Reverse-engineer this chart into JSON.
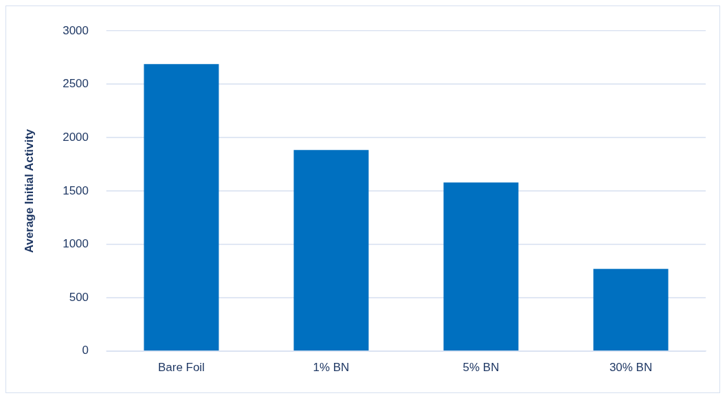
{
  "chart_data": {
    "type": "bar",
    "ylabel": "Average Initial Activity",
    "categories": [
      "Bare Foil",
      "1% BN",
      "5% BN",
      "30% BN"
    ],
    "values": [
      2690,
      1885,
      1580,
      770
    ],
    "color": "#0070c0",
    "ylim": [
      0,
      3000
    ],
    "yticks": [
      0,
      500,
      1000,
      1500,
      2000,
      2500,
      3000
    ],
    "grid": "y"
  }
}
